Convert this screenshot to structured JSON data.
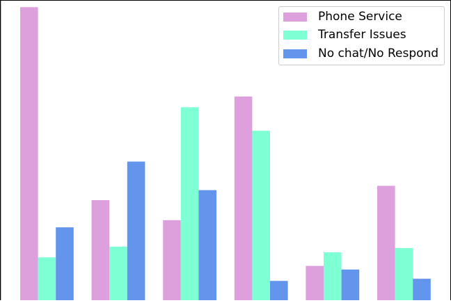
{
  "chart_data": {
    "type": "bar",
    "categories": [
      "",
      "",
      "",
      "",
      "",
      ""
    ],
    "series": [
      {
        "name": "Phone Service",
        "color": "#DDA0DD",
        "values": [
          41.0,
          14.0,
          11.2,
          28.5,
          4.8,
          16.0
        ]
      },
      {
        "name": "Transfer Issues",
        "color": "#7FFFD4",
        "values": [
          6.0,
          7.5,
          27.0,
          23.7,
          6.7,
          7.3
        ]
      },
      {
        "name": "No chat/No Respond",
        "color": "#6495ED",
        "values": [
          10.2,
          19.4,
          15.4,
          2.7,
          4.3,
          3.0
        ]
      }
    ],
    "ylim": [
      0,
      42
    ],
    "grid": false,
    "legend_position": "top-right",
    "title": "",
    "xlabel": "",
    "ylabel": ""
  }
}
